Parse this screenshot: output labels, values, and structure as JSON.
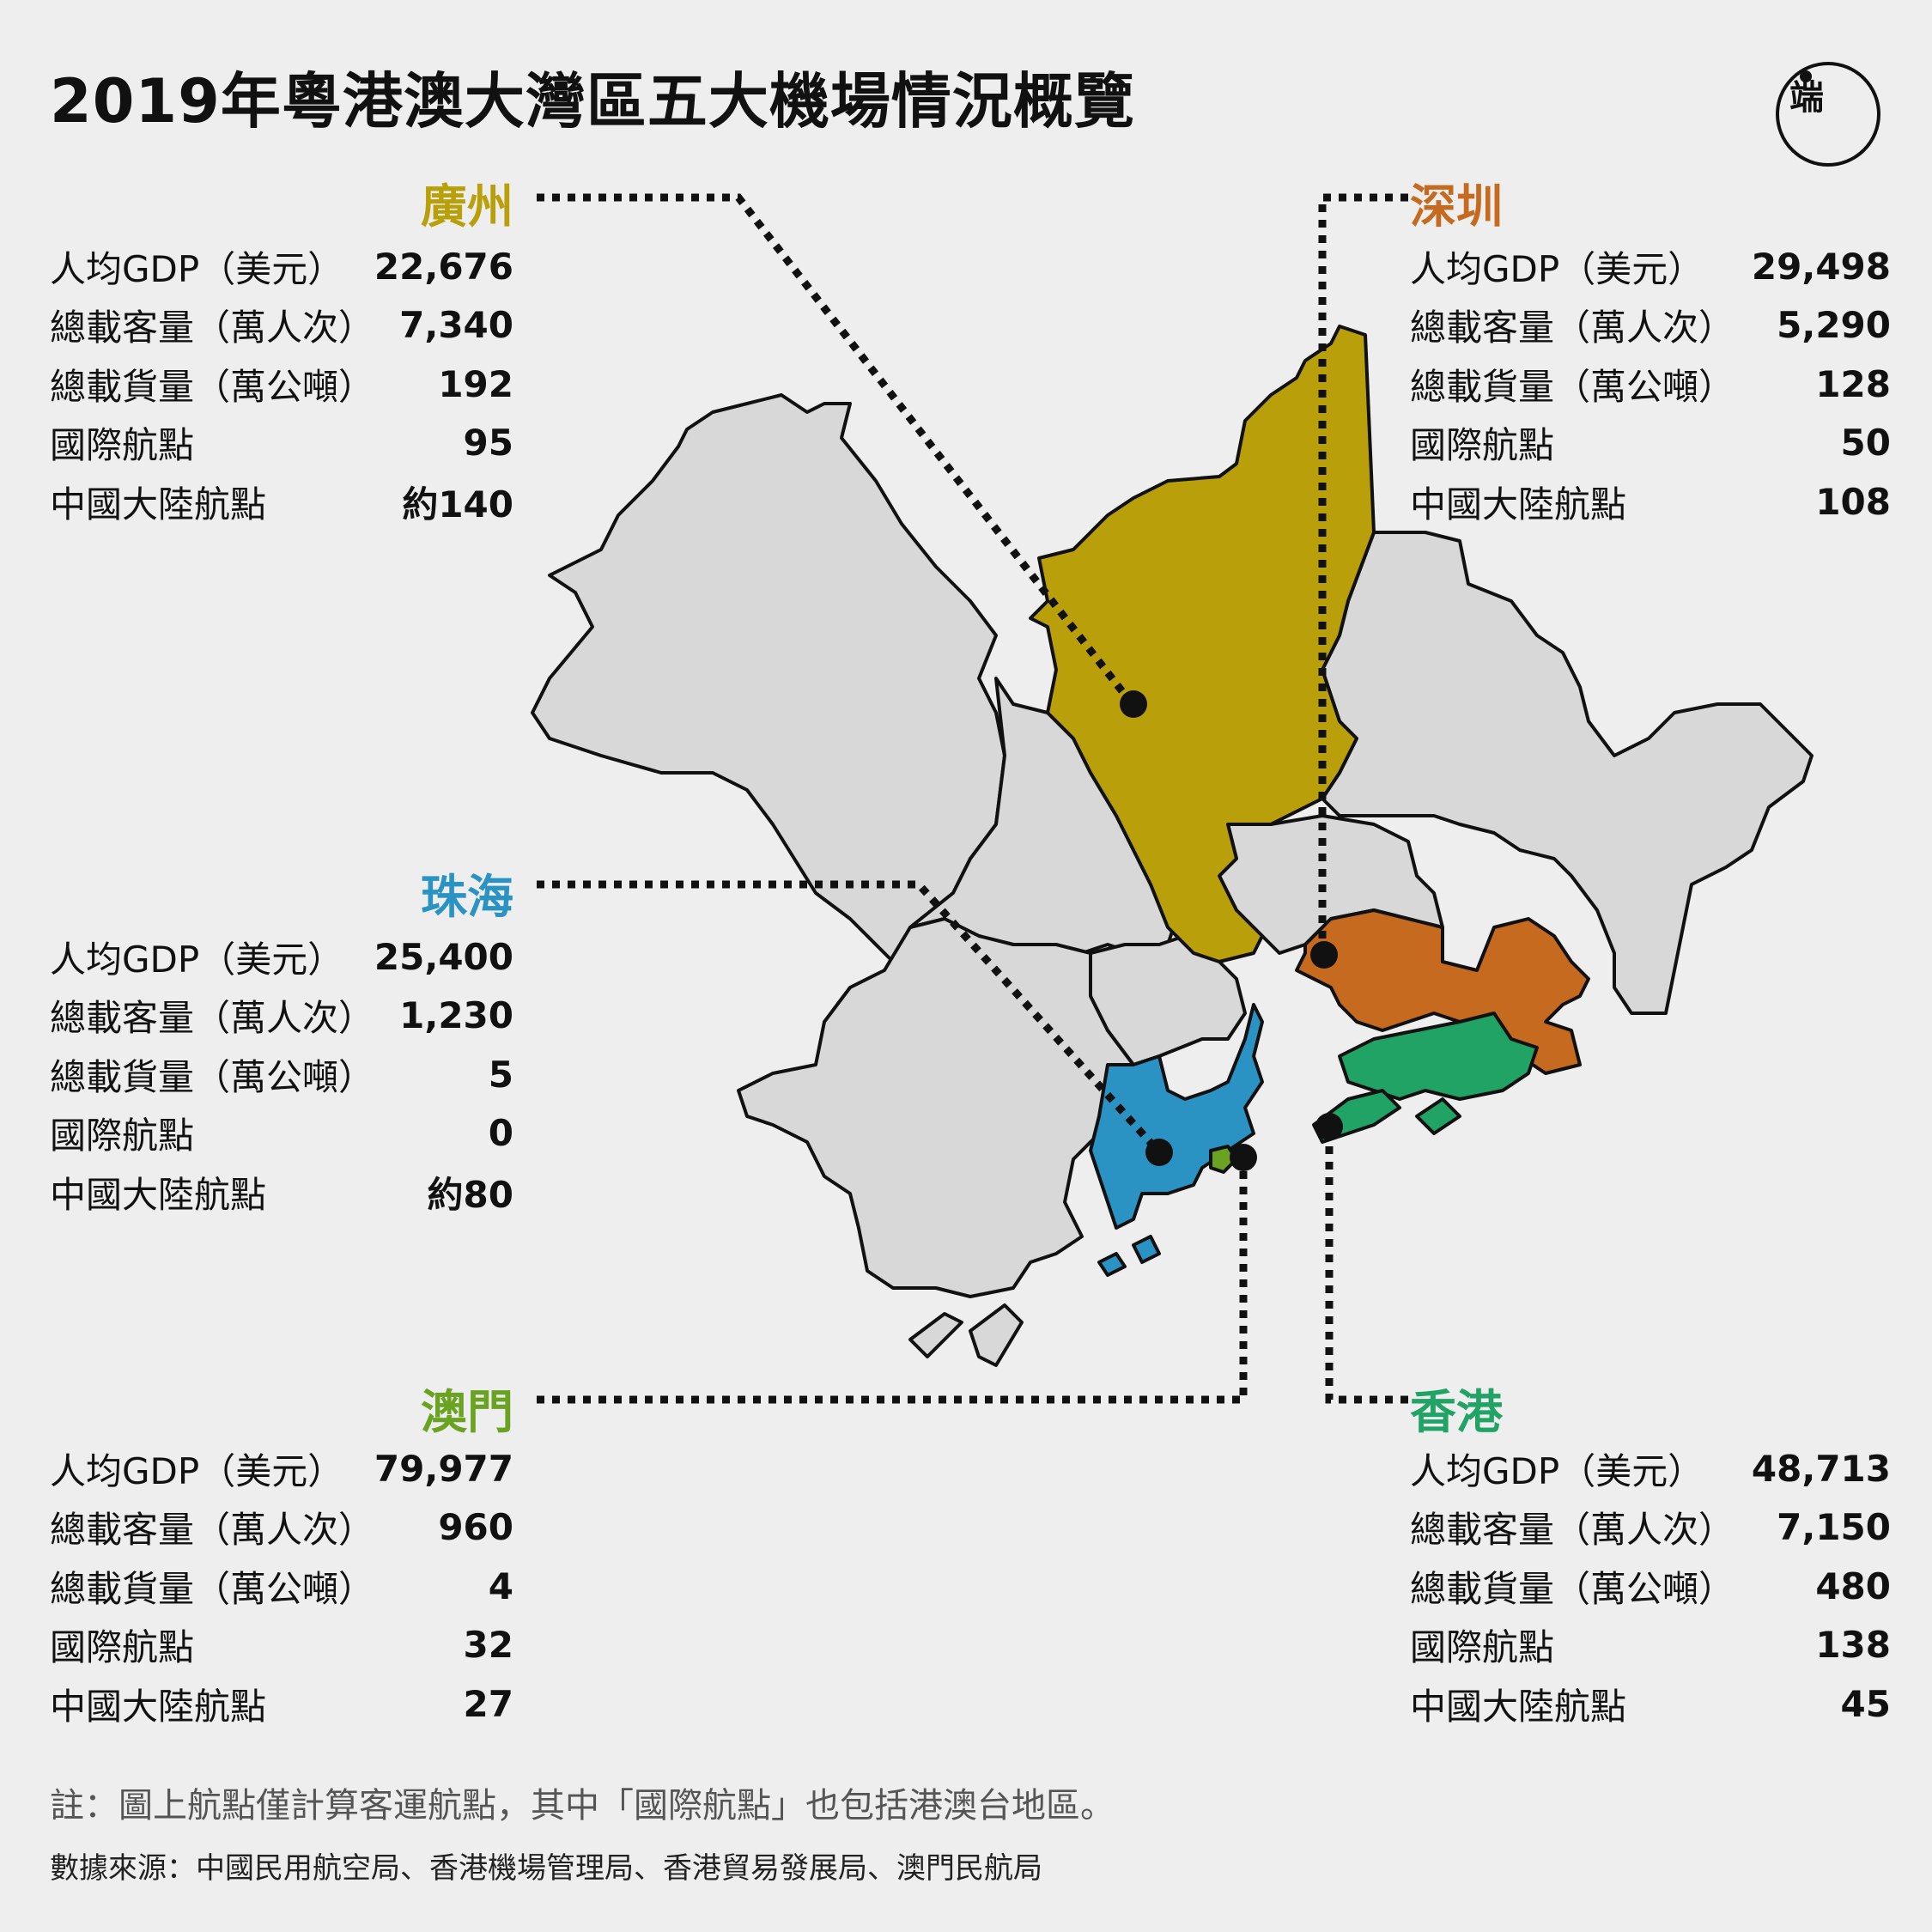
{
  "title": "2019年粵港澳大灣區五大機場情況概覽",
  "logo": {
    "text": "端"
  },
  "colors": {
    "guangzhou": "#b9a00b",
    "shenzhen": "#c56a1e",
    "zhuhai": "#2b93c3",
    "macau": "#6aa321",
    "hongkong": "#21a365",
    "land": "#d8d8d8",
    "background": "#eeeeee"
  },
  "airports": {
    "guangzhou": {
      "name": "廣州",
      "rows": [
        {
          "label": "人均GDP（美元）",
          "value": "22,676"
        },
        {
          "label": "總載客量（萬人次）",
          "value": "7,340"
        },
        {
          "label": "總載貨量（萬公噸）",
          "value": "192"
        },
        {
          "label": "國際航點",
          "value": "95"
        },
        {
          "label": "中國大陸航點",
          "value": "約140"
        }
      ]
    },
    "shenzhen": {
      "name": "深圳",
      "rows": [
        {
          "label": "人均GDP（美元）",
          "value": "29,498"
        },
        {
          "label": "總載客量（萬人次）",
          "value": "5,290"
        },
        {
          "label": "總載貨量（萬公噸）",
          "value": "128"
        },
        {
          "label": "國際航點",
          "value": "50"
        },
        {
          "label": "中國大陸航點",
          "value": "108"
        }
      ]
    },
    "zhuhai": {
      "name": "珠海",
      "rows": [
        {
          "label": "人均GDP（美元）",
          "value": "25,400"
        },
        {
          "label": "總載客量（萬人次）",
          "value": "1,230"
        },
        {
          "label": "總載貨量（萬公噸）",
          "value": "5"
        },
        {
          "label": "國際航點",
          "value": "0"
        },
        {
          "label": "中國大陸航點",
          "value": "約80"
        }
      ]
    },
    "macau": {
      "name": "澳門",
      "rows": [
        {
          "label": "人均GDP（美元）",
          "value": "79,977"
        },
        {
          "label": "總載客量（萬人次）",
          "value": "960"
        },
        {
          "label": "總載貨量（萬公噸）",
          "value": "4"
        },
        {
          "label": "國際航點",
          "value": "32"
        },
        {
          "label": "中國大陸航點",
          "value": "27"
        }
      ]
    },
    "hongkong": {
      "name": "香港",
      "rows": [
        {
          "label": "人均GDP（美元）",
          "value": "48,713"
        },
        {
          "label": "總載客量（萬人次）",
          "value": "7,150"
        },
        {
          "label": "總載貨量（萬公噸）",
          "value": "480"
        },
        {
          "label": "國際航點",
          "value": "138"
        },
        {
          "label": "中國大陸航點",
          "value": "45"
        }
      ]
    }
  },
  "footer": {
    "note": "註：圖上航點僅計算客運航點，其中「國際航點」也包括港澳台地區。",
    "source": "數據來源：中國民用航空局、香港機場管理局、香港貿易發展局、澳門民航局"
  }
}
